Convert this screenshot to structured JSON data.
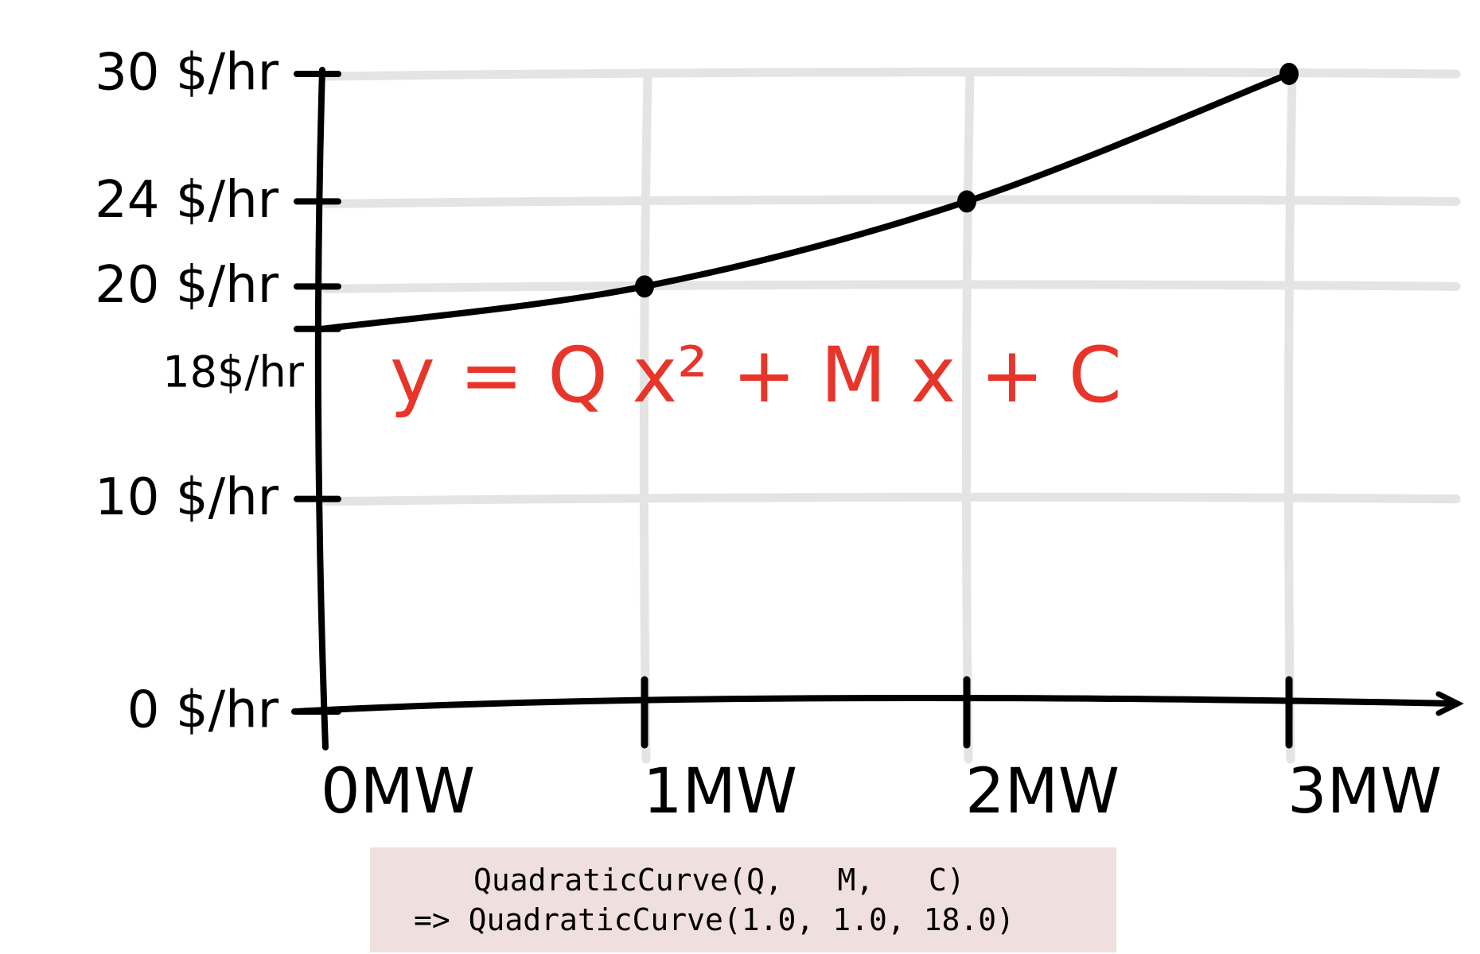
{
  "chart_data": {
    "type": "line",
    "x": [
      0,
      1,
      2,
      3
    ],
    "y": [
      18,
      20,
      24,
      30
    ],
    "marked_points": [
      {
        "x": 1,
        "y": 20
      },
      {
        "x": 2,
        "y": 24
      },
      {
        "x": 3,
        "y": 30
      }
    ],
    "xlim": [
      0,
      3
    ],
    "ylim": [
      0,
      30
    ],
    "x_tick_labels": [
      "0MW",
      "1MW",
      "2MW",
      "3MW"
    ],
    "y_ticks": [
      {
        "value": 30,
        "label": "30 $/hr"
      },
      {
        "value": 24,
        "label": "24 $/hr"
      },
      {
        "value": 20,
        "label": "20 $/hr"
      },
      {
        "value": 18,
        "label": "18$/hr"
      },
      {
        "value": 10,
        "label": "10 $/hr"
      },
      {
        "value": 0,
        "label": "0 $/hr"
      }
    ],
    "grid": true,
    "annotation": "y = Q x² + M x + C",
    "colors": {
      "line": "#000000",
      "grid": "#e4e4e4",
      "annotation": "#e8352a"
    }
  },
  "code": {
    "line1": "QuadraticCurve(Q,   M,   C)",
    "line2": "=> QuadraticCurve(1.0, 1.0, 18.0)",
    "background": "#efdfdf"
  }
}
